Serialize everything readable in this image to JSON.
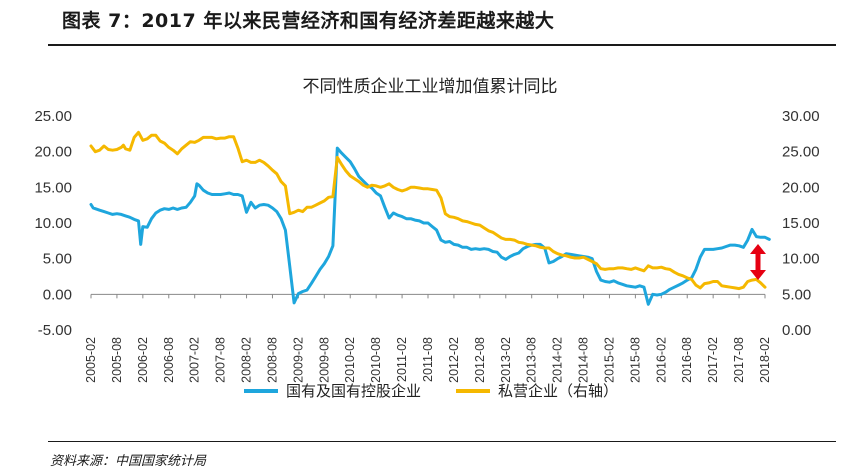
{
  "figure": {
    "title": "图表 7：2017 年以来民营经济和国有经济差距越来越大",
    "source": "资料来源：中国国家统计局"
  },
  "colors": {
    "state_series": "#1ea6dd",
    "private_series": "#f5b800",
    "arrow": "#e60012",
    "axis": "#888888"
  },
  "chart_data": {
    "type": "line",
    "title": "不同性质企业工业增加值累计同比",
    "x_tick_labels": [
      "2005-02",
      "2005-08",
      "2006-02",
      "2006-08",
      "2007-02",
      "2007-08",
      "2008-02",
      "2008-08",
      "2009-02",
      "2009-08",
      "2010-02",
      "2010-08",
      "2011-02",
      "2011-08",
      "2012-02",
      "2012-08",
      "2013-02",
      "2013-08",
      "2014-02",
      "2014-08",
      "2015-02",
      "2015-08",
      "2016-02",
      "2016-08",
      "2017-02",
      "2017-08",
      "2018-02"
    ],
    "y_left": {
      "min": -5,
      "max": 25,
      "ticks": [
        "25.00",
        "20.00",
        "15.00",
        "10.00",
        "5.00",
        "0.00",
        "-5.00"
      ]
    },
    "y_right": {
      "min": 0,
      "max": 30,
      "ticks": [
        "30.00",
        "25.00",
        "20.00",
        "15.00",
        "10.00",
        "5.00",
        "0.00"
      ]
    },
    "annotation": "double-headed arrow marking the 2018 gap between the two series",
    "series": [
      {
        "name": "国有及国有控股企业",
        "axis": "left",
        "values": [
          [
            0,
            12.6
          ],
          [
            0.5,
            12.1
          ],
          [
            1,
            12.0
          ],
          [
            2,
            11.8
          ],
          [
            3,
            11.6
          ],
          [
            4,
            11.4
          ],
          [
            5,
            11.2
          ],
          [
            6,
            11.3
          ],
          [
            7,
            11.2
          ],
          [
            8,
            11.0
          ],
          [
            9,
            10.8
          ],
          [
            10,
            10.5
          ],
          [
            11,
            10.3
          ],
          [
            11.5,
            7.0
          ],
          [
            12,
            9.5
          ],
          [
            13,
            9.4
          ],
          [
            14,
            10.6
          ],
          [
            15,
            11.4
          ],
          [
            16,
            11.8
          ],
          [
            17,
            12.0
          ],
          [
            18,
            11.9
          ],
          [
            19,
            12.1
          ],
          [
            20,
            11.9
          ],
          [
            21,
            12.1
          ],
          [
            22,
            12.2
          ],
          [
            23,
            12.9
          ],
          [
            24,
            13.8
          ],
          [
            24.5,
            15.5
          ],
          [
            25,
            15.3
          ],
          [
            26,
            14.6
          ],
          [
            27,
            14.2
          ],
          [
            28,
            14.0
          ],
          [
            29,
            14.0
          ],
          [
            30,
            14.0
          ],
          [
            31,
            14.1
          ],
          [
            32,
            14.2
          ],
          [
            33,
            14.0
          ],
          [
            34,
            14.0
          ],
          [
            35,
            13.8
          ],
          [
            36,
            11.5
          ],
          [
            37,
            12.9
          ],
          [
            38,
            12.1
          ],
          [
            39,
            12.5
          ],
          [
            40,
            12.6
          ],
          [
            41,
            12.5
          ],
          [
            42,
            12.1
          ],
          [
            43,
            11.6
          ],
          [
            44,
            10.6
          ],
          [
            45,
            9.0
          ],
          [
            46,
            4.0
          ],
          [
            47,
            -1.2
          ],
          [
            48,
            0.1
          ],
          [
            49,
            0.4
          ],
          [
            50,
            0.6
          ],
          [
            51,
            1.5
          ],
          [
            52,
            2.5
          ],
          [
            53,
            3.5
          ],
          [
            54,
            4.3
          ],
          [
            55,
            5.3
          ],
          [
            56,
            6.8
          ],
          [
            57,
            20.5
          ],
          [
            58,
            19.8
          ],
          [
            59,
            19.2
          ],
          [
            60,
            18.6
          ],
          [
            61,
            17.6
          ],
          [
            62,
            16.5
          ],
          [
            63,
            15.9
          ],
          [
            64,
            15.3
          ],
          [
            65,
            14.9
          ],
          [
            66,
            14.2
          ],
          [
            67,
            13.8
          ],
          [
            68,
            12.2
          ],
          [
            69,
            10.7
          ],
          [
            70,
            11.4
          ],
          [
            71,
            11.1
          ],
          [
            72,
            10.9
          ],
          [
            73,
            10.6
          ],
          [
            74,
            10.6
          ],
          [
            75,
            10.4
          ],
          [
            76,
            10.3
          ],
          [
            77,
            10.0
          ],
          [
            78,
            10.0
          ],
          [
            79,
            9.5
          ],
          [
            80,
            9.0
          ],
          [
            81,
            7.6
          ],
          [
            82,
            7.3
          ],
          [
            83,
            7.4
          ],
          [
            84,
            7.0
          ],
          [
            85,
            6.9
          ],
          [
            86,
            6.6
          ],
          [
            87,
            6.6
          ],
          [
            88,
            6.3
          ],
          [
            89,
            6.4
          ],
          [
            90,
            6.3
          ],
          [
            91,
            6.4
          ],
          [
            92,
            6.3
          ],
          [
            93,
            6.0
          ],
          [
            94,
            5.9
          ],
          [
            95,
            5.2
          ],
          [
            96,
            4.9
          ],
          [
            97,
            5.3
          ],
          [
            98,
            5.6
          ],
          [
            99,
            5.8
          ],
          [
            100,
            6.4
          ],
          [
            101,
            6.7
          ],
          [
            102,
            6.9
          ],
          [
            103,
            7.0
          ],
          [
            104,
            7.0
          ],
          [
            105,
            6.5
          ],
          [
            106,
            4.4
          ],
          [
            107,
            4.6
          ],
          [
            108,
            5.0
          ],
          [
            109,
            5.3
          ],
          [
            110,
            5.7
          ],
          [
            111,
            5.6
          ],
          [
            112,
            5.5
          ],
          [
            113,
            5.4
          ],
          [
            114,
            5.3
          ],
          [
            115,
            5.2
          ],
          [
            116,
            5.0
          ],
          [
            117,
            3.2
          ],
          [
            118,
            2.0
          ],
          [
            119,
            1.8
          ],
          [
            120,
            1.7
          ],
          [
            121,
            1.9
          ],
          [
            122,
            1.6
          ],
          [
            123,
            1.4
          ],
          [
            124,
            1.2
          ],
          [
            125,
            1.1
          ],
          [
            126,
            1.0
          ],
          [
            127,
            1.2
          ],
          [
            128,
            1.0
          ],
          [
            129,
            -1.4
          ],
          [
            130,
            0.0
          ],
          [
            131,
            -0.1
          ],
          [
            132,
            0.0
          ],
          [
            133,
            0.3
          ],
          [
            134,
            0.7
          ],
          [
            135,
            1.0
          ],
          [
            136,
            1.3
          ],
          [
            137,
            1.6
          ],
          [
            138,
            2.0
          ],
          [
            139,
            2.3
          ],
          [
            140,
            3.5
          ],
          [
            141,
            5.2
          ],
          [
            142,
            6.3
          ],
          [
            143,
            6.3
          ],
          [
            144,
            6.3
          ],
          [
            145,
            6.4
          ],
          [
            146,
            6.5
          ],
          [
            147,
            6.7
          ],
          [
            148,
            6.9
          ],
          [
            149,
            6.9
          ],
          [
            150,
            6.8
          ],
          [
            151,
            6.6
          ],
          [
            152,
            7.6
          ],
          [
            153,
            9.1
          ],
          [
            154,
            8.1
          ],
          [
            155,
            8.0
          ],
          [
            156,
            8.0
          ],
          [
            157,
            7.7
          ]
        ]
      },
      {
        "name": "私营企业（右轴）",
        "axis": "right",
        "values": [
          [
            0,
            25.8
          ],
          [
            1,
            25.0
          ],
          [
            2,
            25.2
          ],
          [
            3,
            25.8
          ],
          [
            4,
            25.3
          ],
          [
            5,
            25.2
          ],
          [
            6,
            25.3
          ],
          [
            7,
            25.6
          ],
          [
            7.5,
            25.9
          ],
          [
            8,
            25.4
          ],
          [
            9,
            25.2
          ],
          [
            10,
            27.0
          ],
          [
            11,
            27.7
          ],
          [
            12,
            26.6
          ],
          [
            13,
            26.8
          ],
          [
            14,
            27.3
          ],
          [
            15,
            27.3
          ],
          [
            16,
            26.5
          ],
          [
            17,
            26.2
          ],
          [
            18,
            25.6
          ],
          [
            19,
            25.2
          ],
          [
            20,
            24.7
          ],
          [
            21,
            25.4
          ],
          [
            22,
            25.9
          ],
          [
            23,
            26.4
          ],
          [
            24,
            26.3
          ],
          [
            25,
            26.6
          ],
          [
            26,
            27.0
          ],
          [
            27,
            27.0
          ],
          [
            28,
            27.0
          ],
          [
            29,
            26.8
          ],
          [
            30,
            26.9
          ],
          [
            31,
            26.9
          ],
          [
            32,
            27.1
          ],
          [
            33,
            27.1
          ],
          [
            34,
            25.5
          ],
          [
            35,
            23.6
          ],
          [
            36,
            23.8
          ],
          [
            37,
            23.5
          ],
          [
            38,
            23.5
          ],
          [
            39,
            23.8
          ],
          [
            40,
            23.5
          ],
          [
            41,
            23.0
          ],
          [
            42,
            22.4
          ],
          [
            43,
            21.9
          ],
          [
            44,
            20.8
          ],
          [
            45,
            20.2
          ],
          [
            46,
            16.3
          ],
          [
            47,
            16.5
          ],
          [
            48,
            16.8
          ],
          [
            49,
            16.6
          ],
          [
            50,
            17.2
          ],
          [
            51,
            17.2
          ],
          [
            52,
            17.5
          ],
          [
            53,
            17.8
          ],
          [
            54,
            18.1
          ],
          [
            55,
            18.6
          ],
          [
            56,
            18.7
          ],
          [
            57,
            24.2
          ],
          [
            58,
            23.2
          ],
          [
            59,
            22.3
          ],
          [
            60,
            21.6
          ],
          [
            61,
            21.2
          ],
          [
            62,
            20.8
          ],
          [
            63,
            20.3
          ],
          [
            64,
            20.0
          ],
          [
            65,
            20.3
          ],
          [
            66,
            20.2
          ],
          [
            67,
            20.0
          ],
          [
            68,
            20.2
          ],
          [
            69,
            20.5
          ],
          [
            70,
            20.0
          ],
          [
            71,
            19.7
          ],
          [
            72,
            19.5
          ],
          [
            73,
            19.7
          ],
          [
            74,
            20.0
          ],
          [
            75,
            20.0
          ],
          [
            76,
            19.9
          ],
          [
            77,
            19.8
          ],
          [
            78,
            19.8
          ],
          [
            79,
            19.7
          ],
          [
            80,
            19.6
          ],
          [
            81,
            18.5
          ],
          [
            82,
            16.3
          ],
          [
            83,
            15.9
          ],
          [
            84,
            15.8
          ],
          [
            85,
            15.6
          ],
          [
            86,
            15.3
          ],
          [
            87,
            15.2
          ],
          [
            88,
            15.0
          ],
          [
            89,
            14.8
          ],
          [
            90,
            14.7
          ],
          [
            91,
            14.3
          ],
          [
            92,
            13.9
          ],
          [
            93,
            13.7
          ],
          [
            94,
            13.3
          ],
          [
            95,
            12.9
          ],
          [
            96,
            12.7
          ],
          [
            97,
            12.7
          ],
          [
            98,
            12.6
          ],
          [
            99,
            12.3
          ],
          [
            100,
            12.2
          ],
          [
            101,
            12.0
          ],
          [
            102,
            11.9
          ],
          [
            103,
            11.8
          ],
          [
            104,
            11.6
          ],
          [
            105,
            11.5
          ],
          [
            106,
            11.5
          ],
          [
            107,
            11.0
          ],
          [
            108,
            10.7
          ],
          [
            109,
            10.5
          ],
          [
            110,
            10.4
          ],
          [
            111,
            10.2
          ],
          [
            112,
            10.1
          ],
          [
            113,
            10.1
          ],
          [
            114,
            10.2
          ],
          [
            115,
            9.9
          ],
          [
            116,
            9.6
          ],
          [
            117,
            9.3
          ],
          [
            118,
            8.6
          ],
          [
            119,
            8.5
          ],
          [
            120,
            8.6
          ],
          [
            121,
            8.6
          ],
          [
            122,
            8.7
          ],
          [
            123,
            8.7
          ],
          [
            124,
            8.6
          ],
          [
            125,
            8.5
          ],
          [
            126,
            8.7
          ],
          [
            127,
            8.5
          ],
          [
            128,
            8.3
          ],
          [
            129,
            9.0
          ],
          [
            130,
            8.7
          ],
          [
            131,
            8.7
          ],
          [
            132,
            8.8
          ],
          [
            133,
            8.6
          ],
          [
            134,
            8.5
          ],
          [
            135,
            8.1
          ],
          [
            136,
            7.8
          ],
          [
            137,
            7.6
          ],
          [
            138,
            7.3
          ],
          [
            139,
            7.1
          ],
          [
            140,
            6.3
          ],
          [
            141,
            5.9
          ],
          [
            142,
            6.5
          ],
          [
            143,
            6.6
          ],
          [
            144,
            6.8
          ],
          [
            145,
            6.8
          ],
          [
            146,
            6.2
          ],
          [
            147,
            6.1
          ],
          [
            148,
            6.0
          ],
          [
            149,
            5.9
          ],
          [
            150,
            5.8
          ],
          [
            151,
            6.0
          ],
          [
            152,
            6.8
          ],
          [
            153,
            7.0
          ],
          [
            154,
            7.1
          ],
          [
            155,
            6.6
          ],
          [
            156,
            6.0
          ]
        ]
      }
    ],
    "legend_position": "bottom"
  }
}
